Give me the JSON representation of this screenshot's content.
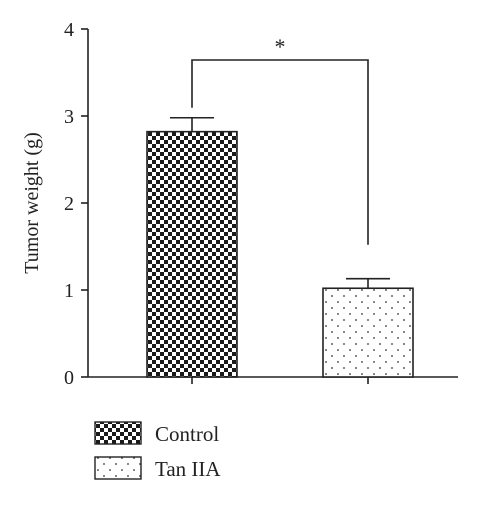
{
  "chart_data": {
    "type": "bar",
    "categories": [
      "Control",
      "Tan IIA"
    ],
    "values": [
      2.82,
      1.02
    ],
    "error_upper": [
      2.98,
      1.13
    ],
    "xlabel": "",
    "ylabel": "Tumor weight (g)",
    "ylim": [
      0,
      4
    ],
    "yticks": [
      "0",
      "1",
      "2",
      "3",
      "4"
    ],
    "grid": false,
    "legend_placement": "bottom-left",
    "legend": [
      {
        "label": "Control",
        "pattern": "checkerboard"
      },
      {
        "label": "Tan IIA",
        "pattern": "dots"
      }
    ],
    "significance": {
      "from": "Control",
      "to": "Tan IIA",
      "label": "*"
    },
    "colors": {
      "bar_fill": "#1a1a1a",
      "axis": "#222222",
      "background": "#ffffff"
    }
  }
}
